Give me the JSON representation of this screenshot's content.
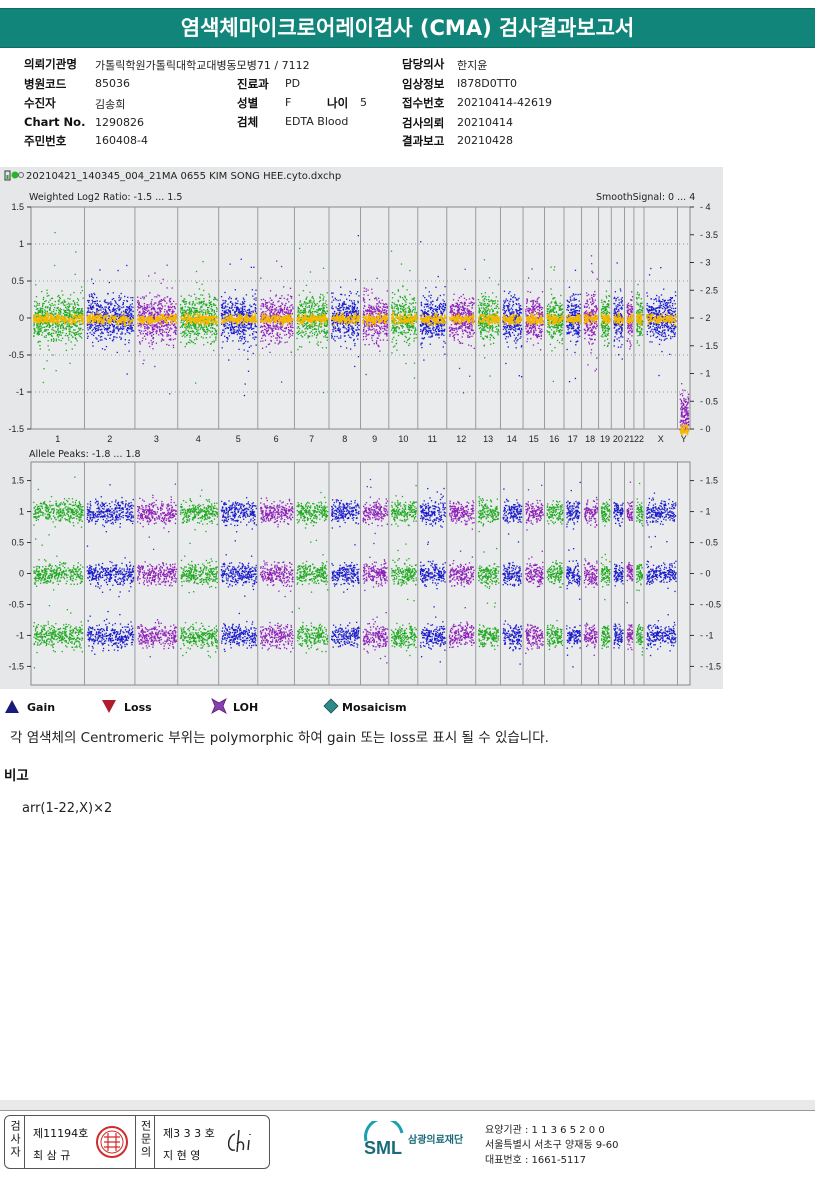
{
  "title": "염색체마이크로어레이검사 (CMA) 검사결과보고서",
  "info": {
    "left": [
      {
        "label": "의뢰기관명",
        "value": "가톨릭학원가톨릭대학교대병동모병71 / 7112"
      },
      {
        "label": "병원코드",
        "value": "85036"
      },
      {
        "label": "수진자",
        "value": "김송희"
      },
      {
        "label": "Chart No.",
        "value": "1290826"
      },
      {
        "label": "주민번호",
        "value": "160408-4"
      }
    ],
    "mid": [
      {
        "label": "진료과",
        "value": "PD"
      },
      {
        "label": "성별",
        "value": "F"
      },
      {
        "label": "검체",
        "value": "EDTA Blood"
      }
    ],
    "age": {
      "label": "나이",
      "value": "5"
    },
    "right": [
      {
        "label": "담당의사",
        "value": "한지윤"
      },
      {
        "label": "임상정보",
        "value": "I878D0TT0"
      },
      {
        "label": "접수번호",
        "value": "20210414-42619"
      },
      {
        "label": "검사의뢰",
        "value": "20210414"
      },
      {
        "label": "결과보고",
        "value": "20210428"
      }
    ]
  },
  "chart": {
    "filename": "20210421_140345_004_21MA 0655 KIM SONG HEE.cyto.dxchp",
    "top_title": "Weighted Log2 Ratio: -1.5 ... 1.5",
    "top_right_title": "SmoothSignal: 0 ... 4",
    "bottom_title": "Allele Peaks: -1.8 ... 1.8"
  },
  "chart_data": [
    {
      "type": "scatter",
      "title": "Weighted Log2 Ratio: -1.5 ... 1.5",
      "y_left_ticks": [
        "1.5",
        "1",
        "0.5",
        "0",
        "-0.5",
        "-1",
        "-1.5"
      ],
      "y_right_ticks": [
        "4",
        "3.5",
        "3",
        "2.5",
        "2",
        "1.5",
        "1",
        "0.5",
        "0"
      ],
      "right_title": "SmoothSignal: 0 ... 4",
      "ylim": [
        -1.5,
        1.5
      ],
      "y2lim": [
        0,
        4
      ],
      "chromosomes": [
        "1",
        "2",
        "3",
        "4",
        "5",
        "6",
        "7",
        "8",
        "9",
        "10",
        "11",
        "12",
        "13",
        "14",
        "15",
        "16",
        "17",
        "18",
        "19",
        "20",
        "21",
        "22",
        "X",
        "Y"
      ],
      "series": [
        {
          "values": [
            0,
            0,
            0,
            0,
            0,
            0,
            0,
            0,
            0,
            0,
            0,
            0,
            0,
            0,
            0,
            0,
            0,
            0,
            0,
            0,
            0,
            0,
            0,
            -1.3
          ]
        },
        {
          "values": [
            2,
            2,
            2,
            2,
            2,
            2,
            2,
            2,
            2,
            2,
            2,
            2,
            2,
            2,
            2,
            2,
            2,
            2,
            2,
            2,
            2,
            2,
            2,
            0
          ]
        }
      ]
    },
    {
      "type": "scatter",
      "title": "Allele Peaks: -1.8 ... 1.8",
      "y_ticks": [
        "1.5",
        "1",
        "0.5",
        "0",
        "-0.5",
        "-1",
        "-1.5"
      ],
      "ylim": [
        -1.8,
        1.8
      ],
      "bands": [
        1,
        0,
        -1
      ]
    }
  ],
  "legend": [
    {
      "label": "Gain",
      "color": "#1a1a7a",
      "icon": "triangle-up-icon"
    },
    {
      "label": "Loss",
      "color": "#b01c2e",
      "icon": "triangle-down-icon"
    },
    {
      "label": "LOH",
      "color": "#7a2fa0",
      "icon": "star-icon"
    },
    {
      "label": "Mosaicism",
      "color": "#2e8b8b",
      "icon": "diamond-icon"
    }
  ],
  "note": "각 염색체의 Centromeric 부위는 polymorphic 하여 gain 또는 loss로 표시 될 수 있습니다.",
  "remark_title": "비고",
  "karyotype": "arr(1-22,X)×2",
  "footer": {
    "role1": "검사자",
    "no1": "제11194호",
    "name1": "최 삼 규",
    "role2": "전문의",
    "no2": "제3 3 3 호",
    "name2": "지 현 영",
    "org_logo": "SML",
    "org_name": "삼광의료재단",
    "addr1": "요양기관 : 1 1 3 6 5 2 0 0",
    "addr2": "서울특별시 서초구 양재동 9-60",
    "addr3": "대표번호 : 1661-5117"
  }
}
